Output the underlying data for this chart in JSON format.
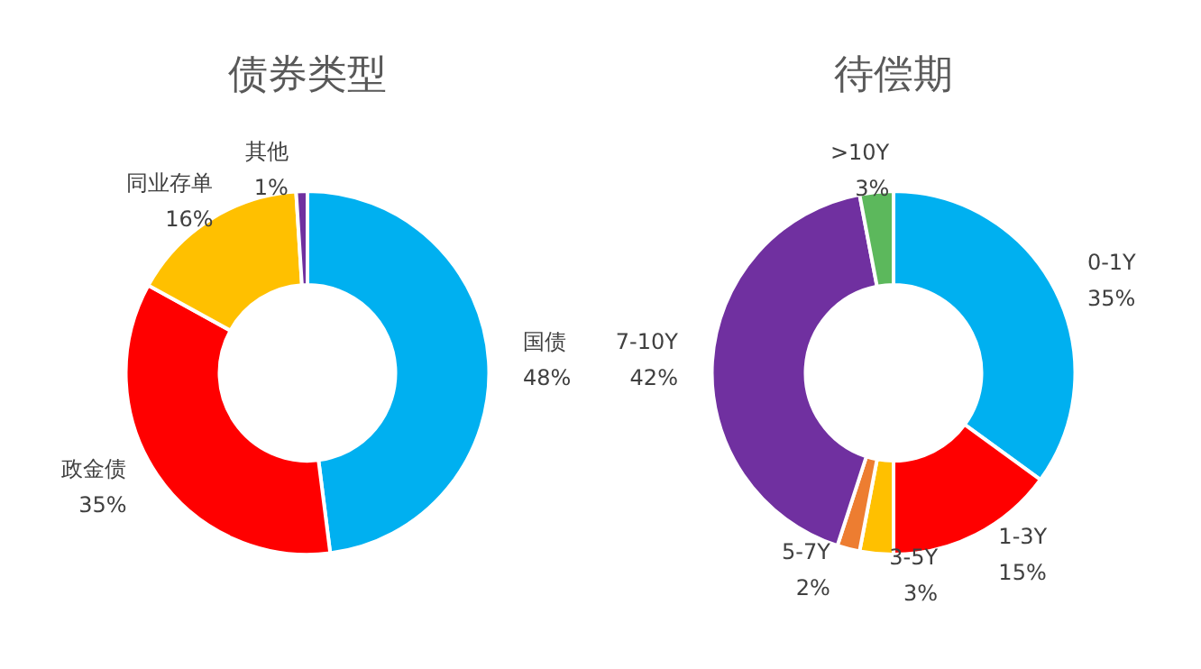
{
  "chart_data": [
    {
      "type": "donut",
      "title": "债券类型",
      "categories": [
        "国债",
        "政金债",
        "同业存单",
        "其他"
      ],
      "values": [
        48,
        35,
        16,
        1
      ],
      "value_labels": [
        "48%",
        "35%",
        "16%",
        "1%"
      ],
      "colors": [
        "#00b0f0",
        "#ff0000",
        "#ffc000",
        "#7030a0"
      ]
    },
    {
      "type": "donut",
      "title": "待偿期",
      "categories": [
        "0-1Y",
        "1-3Y",
        "3-5Y",
        "5-7Y",
        "7-10Y",
        ">10Y"
      ],
      "values": [
        35,
        15,
        3,
        2,
        42,
        3
      ],
      "value_labels": [
        "35%",
        "15%",
        "3%",
        "2%",
        "42%",
        "3%"
      ],
      "colors": [
        "#00b0f0",
        "#ff0000",
        "#ffc000",
        "#ed7d31",
        "#7030a0",
        "#5cb85c"
      ]
    }
  ]
}
